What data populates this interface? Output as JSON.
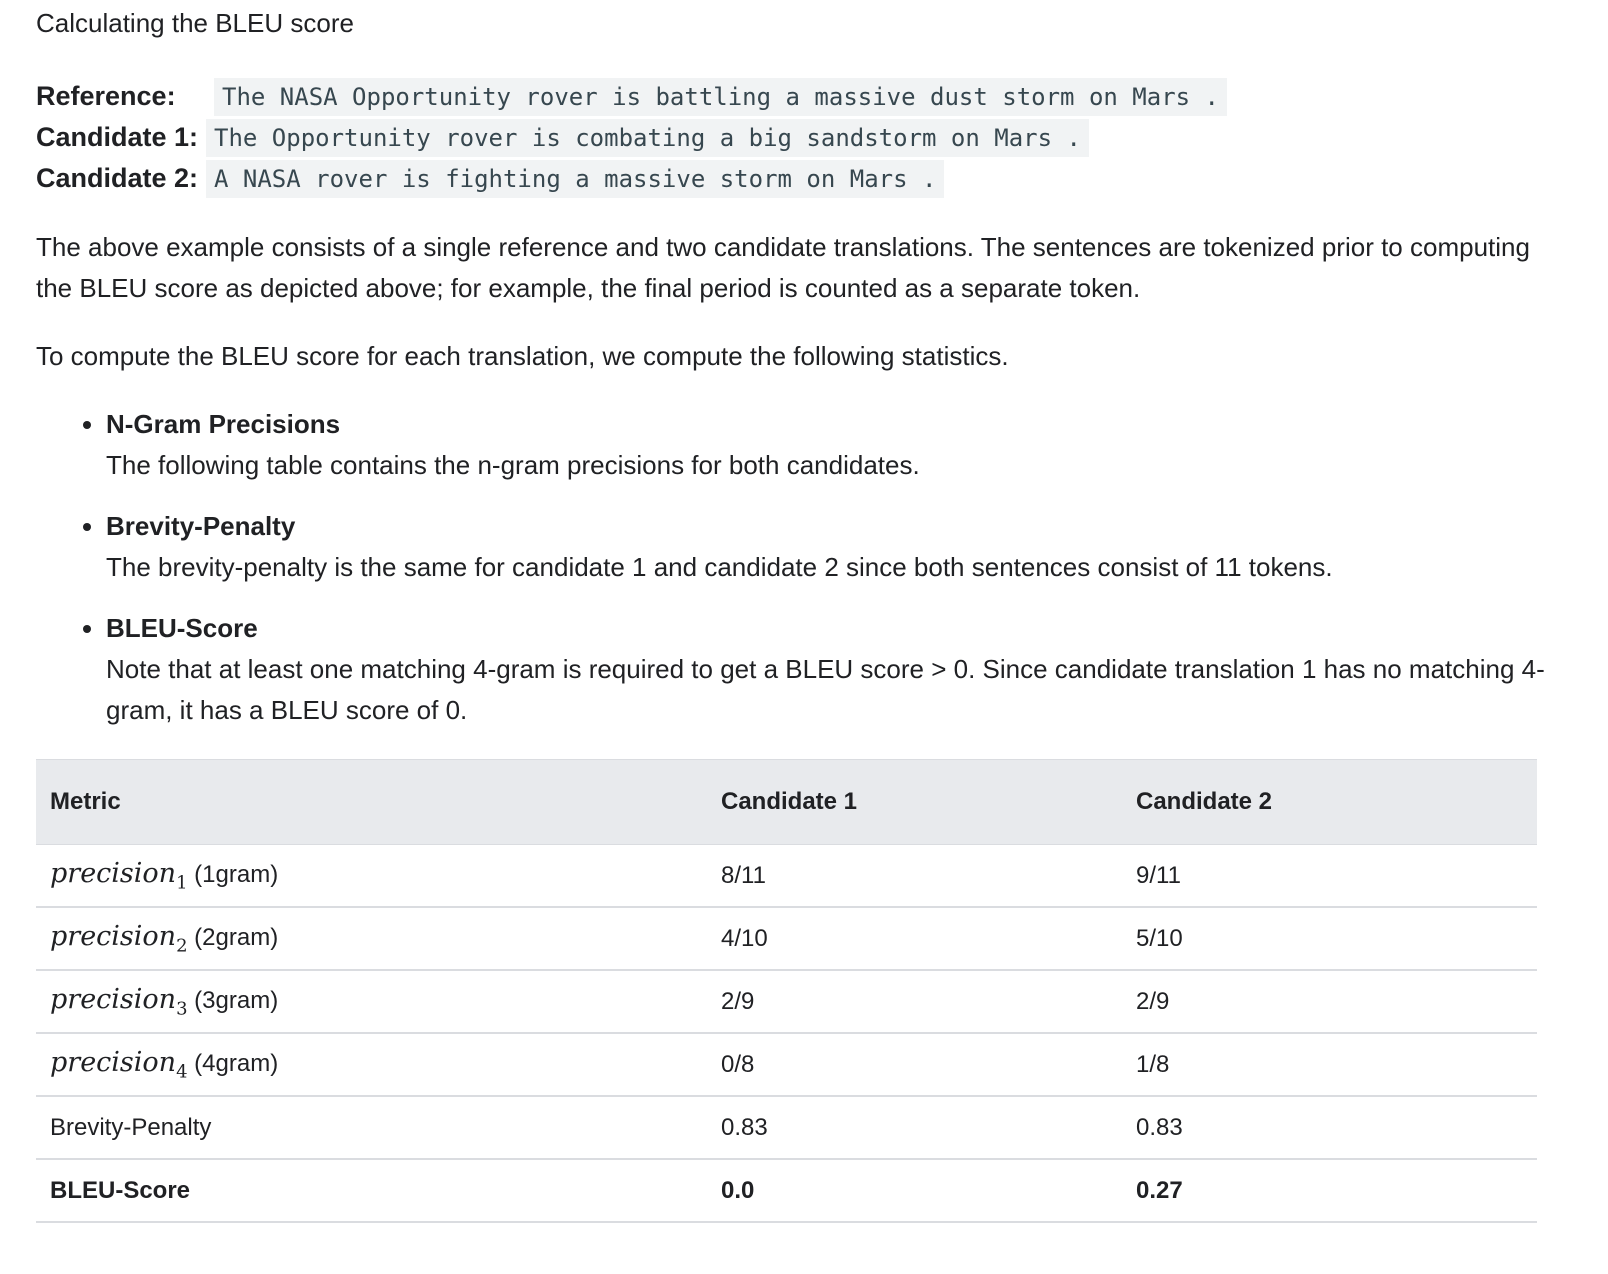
{
  "title": "Calculating the BLEU score",
  "examples": {
    "reference_label": "Reference:",
    "reference_text": "The NASA Opportunity rover is battling a massive dust storm on Mars .",
    "candidate1_label": "Candidate 1:",
    "candidate1_text": "The Opportunity rover is combating a big sandstorm on Mars .",
    "candidate2_label": "Candidate 2:",
    "candidate2_text": "A NASA rover is fighting a massive storm on Mars ."
  },
  "paragraphs": {
    "intro": "The above example consists of a single reference and two candidate translations. The sentences are tokenized prior to computing the BLEU score as depicted above; for example, the final period is counted as a separate token.",
    "compute": "To compute the BLEU score for each translation, we compute the following statistics."
  },
  "stats": [
    {
      "title": "N-Gram Precisions",
      "text": "The following table contains the n-gram precisions for both candidates."
    },
    {
      "title": "Brevity-Penalty",
      "text": "The brevity-penalty is the same for candidate 1 and candidate 2 since both sentences consist of 11 tokens."
    },
    {
      "title": "BLEU-Score",
      "text": "Note that at least one matching 4-gram is required to get a BLEU score > 0. Since candidate translation 1 has no matching 4-gram, it has a BLEU score of 0."
    }
  ],
  "table": {
    "headers": [
      "Metric",
      "Candidate 1",
      "Candidate 2"
    ],
    "rows": [
      {
        "math": "precision",
        "sub": "1",
        "suffix": " (1gram)",
        "c1": "8/11",
        "c2": "9/11"
      },
      {
        "math": "precision",
        "sub": "2",
        "suffix": " (2gram)",
        "c1": "4/10",
        "c2": "5/10"
      },
      {
        "math": "precision",
        "sub": "3",
        "suffix": " (3gram)",
        "c1": "2/9",
        "c2": "2/9"
      },
      {
        "math": "precision",
        "sub": "4",
        "suffix": " (4gram)",
        "c1": "0/8",
        "c2": "1/8"
      },
      {
        "metric": "Brevity-Penalty",
        "c1": "0.83",
        "c2": "0.83"
      },
      {
        "metric": "BLEU-Score",
        "c1": "0.0",
        "c2": "0.27"
      }
    ]
  }
}
